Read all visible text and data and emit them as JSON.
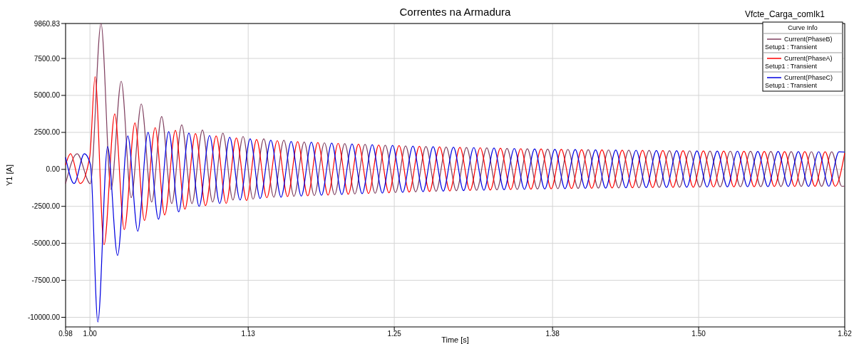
{
  "chart_data": {
    "type": "line",
    "title": "Correntes na Armadura",
    "xlabel": "Time [s]",
    "ylabel": "Y1 [A]",
    "legend_title": "Curve Info",
    "legend": "top right",
    "grid": true,
    "annotations": [
      "Vfcte_Carga_comIk1"
    ],
    "xlim": [
      0.98,
      1.62
    ],
    "ylim": [
      -10650,
      9860.83
    ],
    "xticks": [
      0.98,
      {
        "value": 1.0,
        "label": "1.00"
      },
      1.13,
      1.25,
      1.38,
      {
        "value": 1.5,
        "label": "1.50"
      },
      1.62
    ],
    "yticks": [
      {
        "value": 9860.83,
        "label": "9860.83"
      },
      {
        "value": 7500,
        "label": "7500.00"
      },
      {
        "value": 5000,
        "label": "5000.00"
      },
      {
        "value": 2500,
        "label": "2500.00"
      },
      {
        "value": 0,
        "label": "0.00"
      },
      {
        "value": -2500,
        "label": "-2500.00"
      },
      {
        "value": -5000,
        "label": "-5000.00"
      },
      {
        "value": -7500,
        "label": "-7500.00"
      },
      {
        "value": -10000,
        "label": "-10000.00"
      }
    ],
    "series": [
      {
        "name": "Current(PhaseB)\nSetup1 : Transient",
        "color": "#7f3f5f",
        "x": [
          0.98,
          0.9895,
          1.0003,
          1.0091,
          1.0173,
          1.0257,
          1.0339,
          1.0422,
          1.0507,
          1.0589,
          1.0672,
          1.0754,
          1.0838,
          1.0924,
          1.1008,
          1.1092,
          1.1174,
          1.1258,
          1.134,
          1.1428,
          1.151,
          1.1593,
          1.1676,
          1.176,
          1.1843,
          1.1926,
          1.201,
          1.2093,
          1.2176,
          1.226,
          1.2343,
          1.2426,
          1.251,
          1.2593,
          1.2676,
          1.276,
          1.2843,
          1.2926,
          1.301,
          1.3093,
          1.3176,
          1.326,
          1.3343,
          1.3426,
          1.351,
          1.3593,
          1.3676,
          1.376,
          1.3843,
          1.3926,
          1.401,
          1.4093,
          1.4176,
          1.426,
          1.4343,
          1.4426,
          1.451,
          1.4593,
          1.4676,
          1.476,
          1.4843,
          1.4926,
          1.501,
          1.5093,
          1.5176,
          1.526,
          1.5343,
          1.5426,
          1.551,
          1.5593,
          1.5676,
          1.576,
          1.5843,
          1.5926,
          1.601,
          1.6093,
          1.6176,
          1.62
        ],
        "values": [
          -970,
          1060,
          -970,
          9860,
          -1350,
          5960,
          -1910,
          4420,
          -2210,
          3570,
          -2310,
          3010,
          -2310,
          2660,
          -2210,
          2450,
          -2070,
          2230,
          -2020,
          2070,
          -1880,
          1970,
          -1820,
          1850,
          -1770,
          1795,
          -1715,
          1740,
          -1665,
          1690,
          -1615,
          1635,
          -1565,
          1590,
          -1520,
          1550,
          -1480,
          1515,
          -1445,
          1480,
          -1415,
          1450,
          -1385,
          1420,
          -1355,
          1395,
          -1330,
          1370,
          -1305,
          1350,
          -1290,
          1330,
          -1270,
          1315,
          -1255,
          1295,
          -1240,
          1280,
          -1225,
          1265,
          -1210,
          1255,
          -1200,
          1240,
          -1185,
          1230,
          -1175,
          1220,
          -1165,
          1210,
          -1160,
          1205,
          -1150,
          1195,
          -1145,
          1190,
          -1140,
          -1130
        ]
      },
      {
        "name": "Current(PhaseA)\nSetup1 : Transient",
        "color": "#ff0000",
        "x": [
          0.98,
          0.9841,
          0.992,
          0.9999,
          1.0042,
          1.0116,
          1.0204,
          1.0282,
          1.037,
          1.0448,
          1.0536,
          1.0614,
          1.0702,
          1.078,
          1.0867,
          1.0949,
          1.1037,
          1.1119,
          1.1203,
          1.1287,
          1.1369,
          1.1453,
          1.1539,
          1.1623,
          1.1706,
          1.1789,
          1.1872,
          1.1956,
          1.2039,
          1.2122,
          1.2206,
          1.2289,
          1.2372,
          1.2456,
          1.2539,
          1.2622,
          1.2706,
          1.2789,
          1.2872,
          1.2956,
          1.3039,
          1.3122,
          1.3206,
          1.3289,
          1.3372,
          1.3456,
          1.3539,
          1.3622,
          1.3706,
          1.3789,
          1.3872,
          1.3956,
          1.4039,
          1.4122,
          1.4206,
          1.4289,
          1.4372,
          1.4456,
          1.4539,
          1.4622,
          1.4706,
          1.4789,
          1.4872,
          1.4956,
          1.5039,
          1.5122,
          1.5206,
          1.5289,
          1.5372,
          1.5456,
          1.5539,
          1.5622,
          1.5706,
          1.5789,
          1.5872,
          1.5956,
          1.6039,
          1.6122,
          1.62
        ],
        "values": [
          300,
          1060,
          -960,
          900,
          6270,
          -5100,
          3750,
          -4070,
          3140,
          -3460,
          2820,
          -3080,
          2630,
          -2690,
          2420,
          -2450,
          2260,
          -2300,
          2130,
          -2110,
          2020,
          -1920,
          1940,
          -1830,
          1870,
          -1790,
          1815,
          -1735,
          1760,
          -1680,
          1705,
          -1630,
          1650,
          -1580,
          1605,
          -1535,
          1565,
          -1495,
          1525,
          -1460,
          1490,
          -1425,
          1460,
          -1395,
          1430,
          -1365,
          1400,
          -1340,
          1380,
          -1315,
          1355,
          -1295,
          1335,
          -1280,
          1320,
          -1260,
          1300,
          -1245,
          1285,
          -1230,
          1270,
          -1215,
          1260,
          -1205,
          1245,
          -1190,
          1235,
          -1180,
          1225,
          -1170,
          1215,
          -1160,
          1205,
          -1155,
          1200,
          -1145,
          1190,
          -1140,
          1100
        ]
      },
      {
        "name": "Current(PhaseC)\nSetup1 : Transient",
        "color": "#0000e0",
        "x": [
          0.98,
          0.987,
          0.9954,
          1.0005,
          1.0065,
          1.0145,
          1.0227,
          1.0311,
          1.0393,
          1.0477,
          1.0563,
          1.0647,
          1.0729,
          1.0813,
          1.0897,
          1.0983,
          1.1066,
          1.1148,
          1.1233,
          1.1316,
          1.1398,
          1.1486,
          1.157,
          1.1653,
          1.1736,
          1.1819,
          1.1902,
          1.1986,
          1.2069,
          1.2153,
          1.2236,
          1.2319,
          1.2402,
          1.2486,
          1.2569,
          1.2653,
          1.2736,
          1.2819,
          1.2902,
          1.2986,
          1.3069,
          1.3153,
          1.3236,
          1.3319,
          1.3402,
          1.3486,
          1.3569,
          1.3653,
          1.3736,
          1.3819,
          1.3902,
          1.3986,
          1.4069,
          1.4153,
          1.4236,
          1.4319,
          1.4402,
          1.4486,
          1.4569,
          1.4653,
          1.4736,
          1.4819,
          1.4902,
          1.4986,
          1.5069,
          1.5153,
          1.5236,
          1.5319,
          1.5402,
          1.5486,
          1.5569,
          1.5653,
          1.5736,
          1.5819,
          1.5902,
          1.5986,
          1.6069,
          1.6153,
          1.62
        ],
        "values": [
          820,
          -960,
          1060,
          300,
          -10320,
          1540,
          -5820,
          2260,
          -4180,
          2500,
          -3370,
          2550,
          -2870,
          2450,
          -2500,
          2290,
          -2310,
          2180,
          -2070,
          2070,
          -1970,
          1970,
          -1880,
          1890,
          -1810,
          1835,
          -1755,
          1780,
          -1700,
          1720,
          -1645,
          1665,
          -1600,
          1620,
          -1555,
          1575,
          -1510,
          1535,
          -1475,
          1500,
          -1440,
          1470,
          -1410,
          1440,
          -1380,
          1410,
          -1350,
          1385,
          -1325,
          1360,
          -1305,
          1340,
          -1285,
          1325,
          -1270,
          1305,
          -1250,
          1290,
          -1235,
          1275,
          -1225,
          1265,
          -1210,
          1250,
          -1195,
          1240,
          -1185,
          1230,
          -1175,
          1215,
          -1165,
          1210,
          -1155,
          1200,
          -1150,
          1195,
          -1140,
          1185,
          1170
        ]
      }
    ]
  }
}
